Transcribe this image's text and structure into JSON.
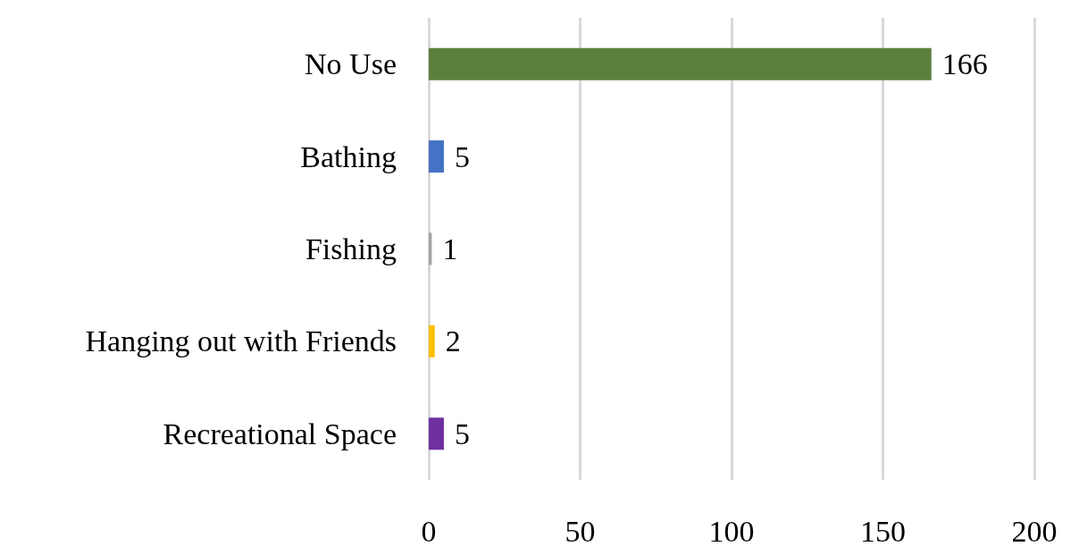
{
  "chart_data": {
    "type": "bar",
    "orientation": "horizontal",
    "categories": [
      "No Use",
      "Bathing",
      "Fishing",
      "Hanging out with Friends",
      "Recreational Space"
    ],
    "values": [
      166,
      5,
      1,
      2,
      5
    ],
    "colors": [
      "#5b803c",
      "#4472c4",
      "#a5a5a5",
      "#ffc000",
      "#7030a0"
    ],
    "xlim": [
      0,
      200
    ],
    "xticks": [
      0,
      50,
      100,
      150,
      200
    ],
    "grid": "x",
    "data_labels": true
  }
}
